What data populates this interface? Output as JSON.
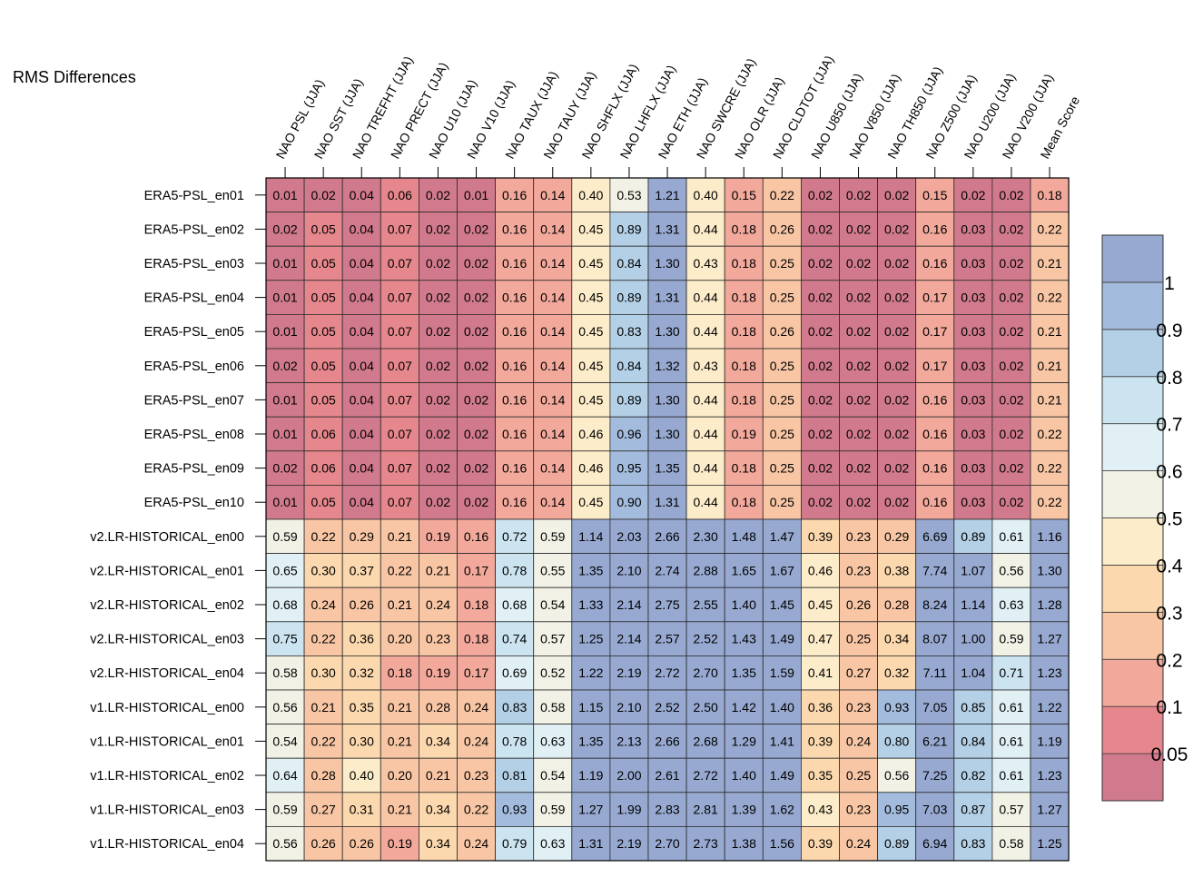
{
  "chart_data": {
    "type": "heatmap",
    "title": "RMS Differences",
    "columns": [
      "NAO PSL (JJA)",
      "NAO SST (JJA)",
      "NAO TREFHT (JJA)",
      "NAO PRECT (JJA)",
      "NAO U10 (JJA)",
      "NAO V10 (JJA)",
      "NAO TAUX (JJA)",
      "NAO TAUY (JJA)",
      "NAO SHFLX (JJA)",
      "NAO LHFLX (JJA)",
      "NAO ETH (JJA)",
      "NAO SWCRE (JJA)",
      "NAO OLR (JJA)",
      "NAO CLDTOT (JJA)",
      "NAO U850 (JJA)",
      "NAO V850 (JJA)",
      "NAO TH850 (JJA)",
      "NAO Z500 (JJA)",
      "NAO U200 (JJA)",
      "NAO V200 (JJA)",
      "Mean Score"
    ],
    "rows": [
      "ERA5-PSL_en01",
      "ERA5-PSL_en02",
      "ERA5-PSL_en03",
      "ERA5-PSL_en04",
      "ERA5-PSL_en05",
      "ERA5-PSL_en06",
      "ERA5-PSL_en07",
      "ERA5-PSL_en08",
      "ERA5-PSL_en09",
      "ERA5-PSL_en10",
      "v2.LR-HISTORICAL_en00",
      "v2.LR-HISTORICAL_en01",
      "v2.LR-HISTORICAL_en02",
      "v2.LR-HISTORICAL_en03",
      "v2.LR-HISTORICAL_en04",
      "v1.LR-HISTORICAL_en00",
      "v1.LR-HISTORICAL_en01",
      "v1.LR-HISTORICAL_en02",
      "v1.LR-HISTORICAL_en03",
      "v1.LR-HISTORICAL_en04"
    ],
    "values": [
      [
        "0.01",
        "0.02",
        "0.04",
        "0.06",
        "0.02",
        "0.01",
        "0.16",
        "0.14",
        "0.40",
        "0.53",
        "1.21",
        "0.40",
        "0.15",
        "0.22",
        "0.02",
        "0.02",
        "0.02",
        "0.15",
        "0.02",
        "0.02",
        "0.18"
      ],
      [
        "0.02",
        "0.05",
        "0.04",
        "0.07",
        "0.02",
        "0.02",
        "0.16",
        "0.14",
        "0.45",
        "0.89",
        "1.31",
        "0.44",
        "0.18",
        "0.26",
        "0.02",
        "0.02",
        "0.02",
        "0.16",
        "0.03",
        "0.02",
        "0.22"
      ],
      [
        "0.01",
        "0.05",
        "0.04",
        "0.07",
        "0.02",
        "0.02",
        "0.16",
        "0.14",
        "0.45",
        "0.84",
        "1.30",
        "0.43",
        "0.18",
        "0.25",
        "0.02",
        "0.02",
        "0.02",
        "0.16",
        "0.03",
        "0.02",
        "0.21"
      ],
      [
        "0.01",
        "0.05",
        "0.04",
        "0.07",
        "0.02",
        "0.02",
        "0.16",
        "0.14",
        "0.45",
        "0.89",
        "1.31",
        "0.44",
        "0.18",
        "0.25",
        "0.02",
        "0.02",
        "0.02",
        "0.17",
        "0.03",
        "0.02",
        "0.22"
      ],
      [
        "0.01",
        "0.05",
        "0.04",
        "0.07",
        "0.02",
        "0.02",
        "0.16",
        "0.14",
        "0.45",
        "0.83",
        "1.30",
        "0.44",
        "0.18",
        "0.26",
        "0.02",
        "0.02",
        "0.02",
        "0.17",
        "0.03",
        "0.02",
        "0.21"
      ],
      [
        "0.02",
        "0.05",
        "0.04",
        "0.07",
        "0.02",
        "0.02",
        "0.16",
        "0.14",
        "0.45",
        "0.84",
        "1.32",
        "0.43",
        "0.18",
        "0.25",
        "0.02",
        "0.02",
        "0.02",
        "0.17",
        "0.03",
        "0.02",
        "0.21"
      ],
      [
        "0.01",
        "0.05",
        "0.04",
        "0.07",
        "0.02",
        "0.02",
        "0.16",
        "0.14",
        "0.45",
        "0.89",
        "1.30",
        "0.44",
        "0.18",
        "0.25",
        "0.02",
        "0.02",
        "0.02",
        "0.16",
        "0.03",
        "0.02",
        "0.21"
      ],
      [
        "0.01",
        "0.06",
        "0.04",
        "0.07",
        "0.02",
        "0.02",
        "0.16",
        "0.14",
        "0.46",
        "0.96",
        "1.30",
        "0.44",
        "0.19",
        "0.25",
        "0.02",
        "0.02",
        "0.02",
        "0.16",
        "0.03",
        "0.02",
        "0.22"
      ],
      [
        "0.02",
        "0.06",
        "0.04",
        "0.07",
        "0.02",
        "0.02",
        "0.16",
        "0.14",
        "0.46",
        "0.95",
        "1.35",
        "0.44",
        "0.18",
        "0.25",
        "0.02",
        "0.02",
        "0.02",
        "0.16",
        "0.03",
        "0.02",
        "0.22"
      ],
      [
        "0.01",
        "0.05",
        "0.04",
        "0.07",
        "0.02",
        "0.02",
        "0.16",
        "0.14",
        "0.45",
        "0.90",
        "1.31",
        "0.44",
        "0.18",
        "0.25",
        "0.02",
        "0.02",
        "0.02",
        "0.16",
        "0.03",
        "0.02",
        "0.22"
      ],
      [
        "0.59",
        "0.22",
        "0.29",
        "0.21",
        "0.19",
        "0.16",
        "0.72",
        "0.59",
        "1.14",
        "2.03",
        "2.66",
        "2.30",
        "1.48",
        "1.47",
        "0.39",
        "0.23",
        "0.29",
        "6.69",
        "0.89",
        "0.61",
        "1.16"
      ],
      [
        "0.65",
        "0.30",
        "0.37",
        "0.22",
        "0.21",
        "0.17",
        "0.78",
        "0.55",
        "1.35",
        "2.10",
        "2.74",
        "2.88",
        "1.65",
        "1.67",
        "0.46",
        "0.23",
        "0.38",
        "7.74",
        "1.07",
        "0.56",
        "1.30"
      ],
      [
        "0.68",
        "0.24",
        "0.26",
        "0.21",
        "0.24",
        "0.18",
        "0.68",
        "0.54",
        "1.33",
        "2.14",
        "2.75",
        "2.55",
        "1.40",
        "1.45",
        "0.45",
        "0.26",
        "0.28",
        "8.24",
        "1.14",
        "0.63",
        "1.28"
      ],
      [
        "0.75",
        "0.22",
        "0.36",
        "0.20",
        "0.23",
        "0.18",
        "0.74",
        "0.57",
        "1.25",
        "2.14",
        "2.57",
        "2.52",
        "1.43",
        "1.49",
        "0.47",
        "0.25",
        "0.34",
        "8.07",
        "1.00",
        "0.59",
        "1.27"
      ],
      [
        "0.58",
        "0.30",
        "0.32",
        "0.18",
        "0.19",
        "0.17",
        "0.69",
        "0.52",
        "1.22",
        "2.19",
        "2.72",
        "2.70",
        "1.35",
        "1.59",
        "0.41",
        "0.27",
        "0.32",
        "7.11",
        "1.04",
        "0.71",
        "1.23"
      ],
      [
        "0.56",
        "0.21",
        "0.35",
        "0.21",
        "0.28",
        "0.24",
        "0.83",
        "0.58",
        "1.15",
        "2.10",
        "2.52",
        "2.50",
        "1.42",
        "1.40",
        "0.36",
        "0.23",
        "0.93",
        "7.05",
        "0.85",
        "0.61",
        "1.22"
      ],
      [
        "0.54",
        "0.22",
        "0.30",
        "0.21",
        "0.34",
        "0.24",
        "0.78",
        "0.63",
        "1.35",
        "2.13",
        "2.66",
        "2.68",
        "1.29",
        "1.41",
        "0.39",
        "0.24",
        "0.80",
        "6.21",
        "0.84",
        "0.61",
        "1.19"
      ],
      [
        "0.64",
        "0.28",
        "0.40",
        "0.20",
        "0.21",
        "0.23",
        "0.81",
        "0.54",
        "1.19",
        "2.00",
        "2.61",
        "2.72",
        "1.40",
        "1.49",
        "0.35",
        "0.25",
        "0.56",
        "7.25",
        "0.82",
        "0.61",
        "1.23"
      ],
      [
        "0.59",
        "0.27",
        "0.31",
        "0.21",
        "0.34",
        "0.22",
        "0.93",
        "0.59",
        "1.27",
        "1.99",
        "2.83",
        "2.81",
        "1.39",
        "1.62",
        "0.43",
        "0.23",
        "0.95",
        "7.03",
        "0.87",
        "0.57",
        "1.27"
      ],
      [
        "0.56",
        "0.26",
        "0.26",
        "0.19",
        "0.34",
        "0.24",
        "0.79",
        "0.63",
        "1.31",
        "2.19",
        "2.70",
        "2.73",
        "1.38",
        "1.56",
        "0.39",
        "0.24",
        "0.89",
        "6.94",
        "0.83",
        "0.58",
        "1.25"
      ]
    ],
    "colorbar": {
      "thresholds": [
        0.05,
        0.1,
        0.2,
        0.3,
        0.4,
        0.5,
        0.6,
        0.7,
        0.8,
        0.9,
        1
      ],
      "labels": [
        "0.05",
        "0.1",
        "0.2",
        "0.3",
        "0.4",
        "0.5",
        "0.6",
        "0.7",
        "0.8",
        "0.9",
        "1"
      ],
      "colors": [
        "#d17a8d",
        "#e5878c",
        "#f2a89b",
        "#f8c6a4",
        "#fbd8ae",
        "#fdecc9",
        "#f1f1e6",
        "#e0f0f5",
        "#cbe4f0",
        "#b4d0e6",
        "#a3bbdc",
        "#97a9d1"
      ]
    },
    "grid": true,
    "legend_position": "right"
  }
}
